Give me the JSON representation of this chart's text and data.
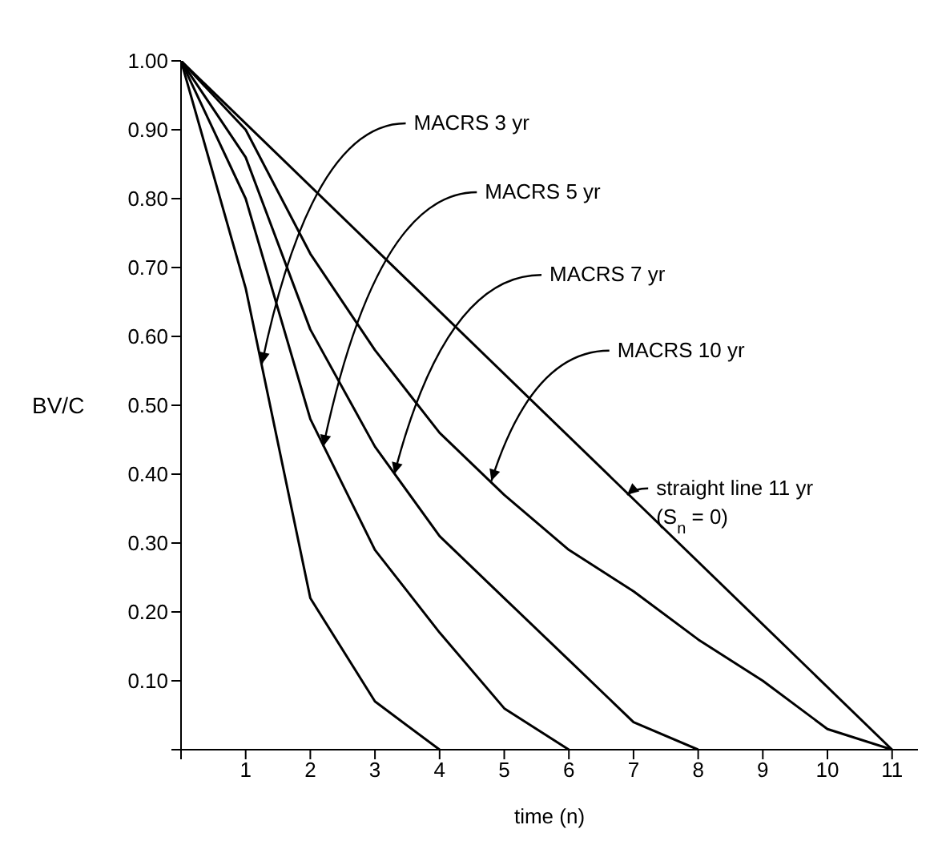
{
  "chart_data": {
    "type": "line",
    "xlabel": "time (n)",
    "ylabel": "BV/C",
    "xlim": [
      0,
      11.4
    ],
    "xticks": [
      {
        "value": 0,
        "label": null
      },
      1,
      2,
      3,
      4,
      5,
      6,
      7,
      8,
      9,
      10,
      11
    ],
    "ylim": [
      0,
      1.0
    ],
    "yticks": [
      {
        "value": 0,
        "label": null
      },
      {
        "value": 0.1,
        "label": "0.10"
      },
      {
        "value": 0.2,
        "label": "0.20"
      },
      {
        "value": 0.3,
        "label": "0.30"
      },
      {
        "value": 0.4,
        "label": "0.40"
      },
      {
        "value": 0.5,
        "label": "0.50"
      },
      {
        "value": 0.6,
        "label": "0.60"
      },
      {
        "value": 0.7,
        "label": "0.70"
      },
      {
        "value": 0.8,
        "label": "0.80"
      },
      {
        "value": 0.9,
        "label": "0.90"
      },
      {
        "value": 1.0,
        "label": "1.00"
      }
    ],
    "series": [
      {
        "color": "#000000",
        "x": [
          0,
          1,
          2,
          3,
          4
        ],
        "values": [
          1,
          0.67,
          0.22,
          0.07,
          0
        ]
      },
      {
        "color": "#000000",
        "x": [
          0,
          1,
          2,
          3,
          4,
          5,
          6
        ],
        "values": [
          1,
          0.8,
          0.48,
          0.29,
          0.17,
          0.06,
          0
        ]
      },
      {
        "color": "#000000",
        "x": [
          0,
          1,
          2,
          3,
          4,
          5,
          6,
          7,
          8
        ],
        "values": [
          1,
          0.86,
          0.61,
          0.44,
          0.31,
          0.22,
          0.13,
          0.04,
          0
        ]
      },
      {
        "color": "#000000",
        "x": [
          0,
          1,
          2,
          3,
          4,
          5,
          6,
          7,
          8,
          9,
          10,
          11
        ],
        "values": [
          1,
          0.9,
          0.72,
          0.58,
          0.46,
          0.37,
          0.29,
          0.23,
          0.16,
          0.1,
          0.03,
          0
        ]
      },
      {
        "color": "#000000",
        "x": [
          0,
          11
        ],
        "values": [
          1,
          0
        ]
      }
    ],
    "annotations": [
      {
        "text": "MACRS 3 yr",
        "x": 1.25,
        "y": 0.56
      },
      {
        "text": "MACRS 5 yr",
        "x": 2.2,
        "y": 0.44
      },
      {
        "text": "MACRS 7 yr",
        "x": 3.3,
        "y": 0.4
      },
      {
        "text": "MACRS 10 yr",
        "x": 4.8,
        "y": 0.39
      },
      {
        "text": "straight line 11 yr",
        "x": 6.9,
        "y": 0.37
      },
      "(S$_{n}$ = 0)"
    ],
    "grid": false,
    "legend": false,
    "marker": "none",
    "line_style": "solid"
  }
}
